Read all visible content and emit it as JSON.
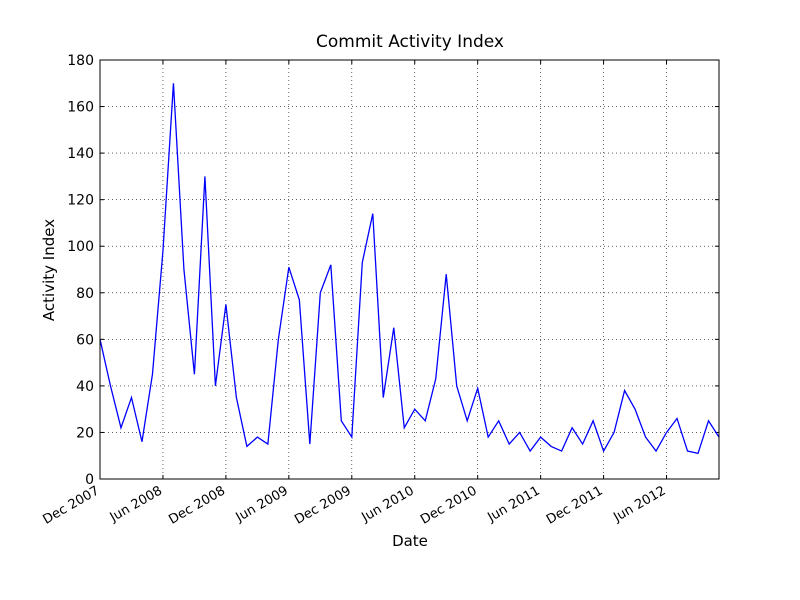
{
  "chart_data": {
    "type": "line",
    "title": "Commit Activity Index",
    "x_label": "Date",
    "y_label": "Activity Index",
    "x": [
      "2007-12",
      "2008-01",
      "2008-02",
      "2008-03",
      "2008-04",
      "2008-05",
      "2008-06",
      "2008-07",
      "2008-08",
      "2008-09",
      "2008-10",
      "2008-11",
      "2008-12",
      "2009-01",
      "2009-02",
      "2009-03",
      "2009-04",
      "2009-05",
      "2009-06",
      "2009-07",
      "2009-08",
      "2009-09",
      "2009-10",
      "2009-11",
      "2009-12",
      "2010-01",
      "2010-02",
      "2010-03",
      "2010-04",
      "2010-05",
      "2010-06",
      "2010-07",
      "2010-08",
      "2010-09",
      "2010-10",
      "2010-11",
      "2010-12",
      "2011-01",
      "2011-02",
      "2011-03",
      "2011-04",
      "2011-05",
      "2011-06",
      "2011-07",
      "2011-08",
      "2011-09",
      "2011-10",
      "2011-11",
      "2011-12",
      "2012-01",
      "2012-02",
      "2012-03",
      "2012-04",
      "2012-05",
      "2012-06",
      "2012-07",
      "2012-08",
      "2012-09",
      "2012-10",
      "2012-11"
    ],
    "series": [
      {
        "name": "Activity Index",
        "color": "#0000ff",
        "values": [
          60,
          40,
          22,
          35,
          16,
          45,
          98,
          170,
          90,
          45,
          130,
          40,
          75,
          35,
          14,
          18,
          15,
          60,
          91,
          77,
          15,
          80,
          92,
          25,
          18,
          93,
          114,
          35,
          65,
          22,
          30,
          25,
          43,
          88,
          40,
          25,
          39,
          18,
          25,
          15,
          20,
          12,
          18,
          14,
          12,
          22,
          15,
          25,
          12,
          20,
          38,
          30,
          18,
          12,
          20,
          26,
          12,
          11,
          25,
          18
        ]
      }
    ],
    "xlim": [
      "2007-12",
      "2012-11"
    ],
    "xticks": [
      {
        "value": "2007-12",
        "label": "Dec 2007"
      },
      {
        "value": "2008-06",
        "label": "Jun 2008"
      },
      {
        "value": "2008-12",
        "label": "Dec 2008"
      },
      {
        "value": "2009-06",
        "label": "Jun 2009"
      },
      {
        "value": "2009-12",
        "label": "Dec 2009"
      },
      {
        "value": "2010-06",
        "label": "Jun 2010"
      },
      {
        "value": "2010-12",
        "label": "Dec 2010"
      },
      {
        "value": "2011-06",
        "label": "Jun 2011"
      },
      {
        "value": "2011-12",
        "label": "Dec 2011"
      },
      {
        "value": "2012-06",
        "label": "Jun 2012"
      }
    ],
    "ylim": [
      0,
      180
    ],
    "yticks": [
      0,
      20,
      40,
      60,
      80,
      100,
      120,
      140,
      160,
      180
    ],
    "grid": true
  }
}
